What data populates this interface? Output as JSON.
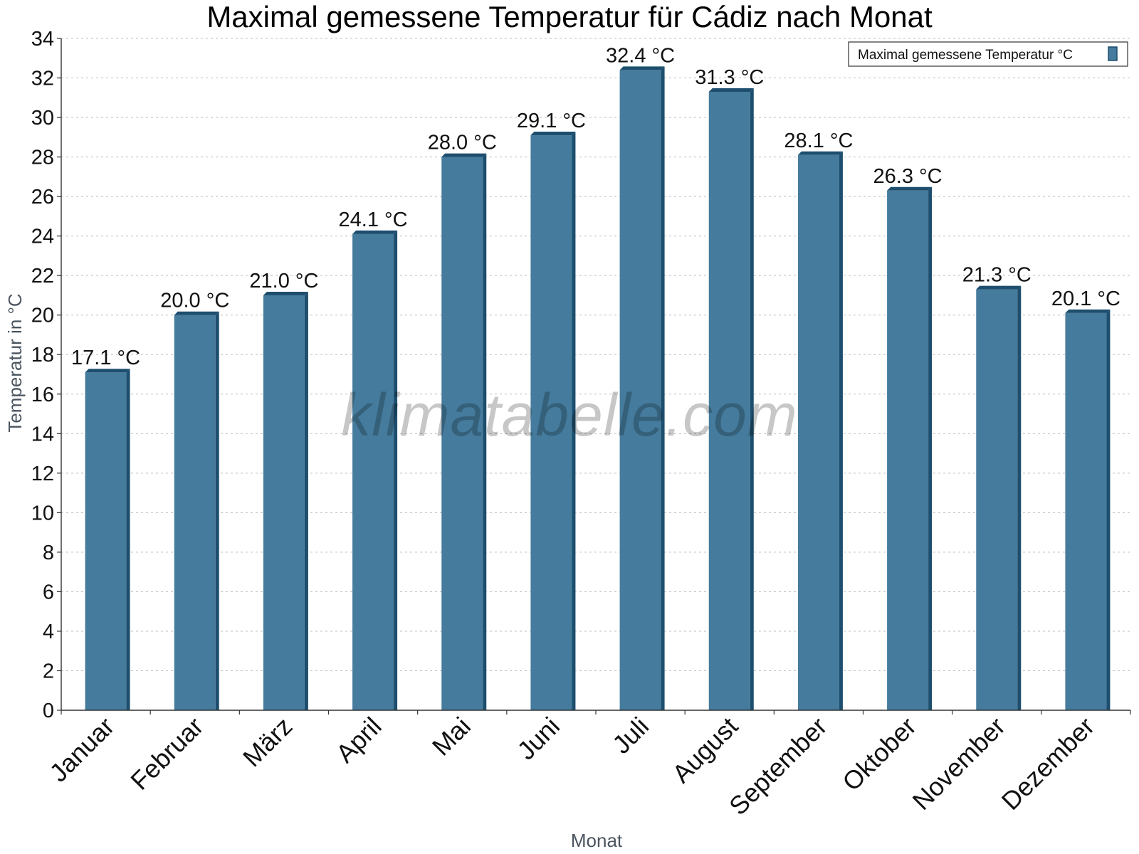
{
  "chart_data": {
    "type": "bar",
    "title": "Maximal gemessene Temperatur für Cádiz nach Monat",
    "xlabel": "Monat",
    "ylabel": "Temperatur in °C",
    "ylim": [
      0,
      34
    ],
    "ytick_step": 2,
    "grid": true,
    "categories": [
      "Januar",
      "Februar",
      "März",
      "April",
      "Mai",
      "Juni",
      "Juli",
      "August",
      "September",
      "Oktober",
      "November",
      "Dezember"
    ],
    "series": [
      {
        "name": "Maximal gemessene Temperatur °C",
        "values": [
          17.1,
          20.0,
          21.0,
          24.1,
          28.0,
          29.1,
          32.4,
          31.3,
          28.1,
          26.3,
          21.3,
          20.1
        ],
        "color": "#457b9d",
        "edge_color": "#1d4e6e"
      }
    ],
    "data_labels": [
      "17.1 °C",
      "20.0 °C",
      "21.0 °C",
      "24.1 °C",
      "28.0 °C",
      "29.1 °C",
      "32.4 °C",
      "31.3 °C",
      "28.1 °C",
      "26.3 °C",
      "21.3 °C",
      "20.1 °C"
    ],
    "legend_position": "top-right"
  },
  "watermark": "klimatabelle.com"
}
